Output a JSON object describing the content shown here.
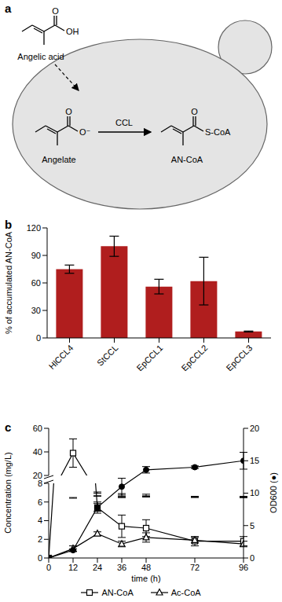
{
  "diagram": {
    "panel_label": "a",
    "enzyme": "CCL",
    "molecules": [
      {
        "label": "Angelic acid",
        "atoms": [
          "O",
          "OH"
        ]
      },
      {
        "label": "Angelate",
        "atoms": [
          "O",
          "O⁻"
        ]
      },
      {
        "label": "AN-CoA",
        "atoms": [
          "O",
          "S-CoA"
        ]
      }
    ]
  },
  "chart_data": [
    {
      "panel_label": "b",
      "type": "bar",
      "y_label": "% of accumulated AN-CoA",
      "categories": [
        "HlCCL4",
        "StCCL",
        "EpCCL1",
        "EpCCL2",
        "EpCCL3"
      ],
      "values": [
        75,
        100,
        56,
        62,
        7
      ],
      "errors": [
        4.5,
        11,
        8,
        26,
        0.5
      ],
      "color": "#b01e1e",
      "ylim": [
        0,
        120
      ],
      "yticks": [
        0,
        30,
        60,
        90,
        120
      ]
    },
    {
      "panel_label": "c",
      "type": "line",
      "x_label": "time (h)",
      "y_label": "Concentration (mg/L)",
      "y2_label": "OD600 (●)",
      "x": [
        0,
        12,
        24,
        36,
        48,
        72,
        96
      ],
      "xlim": [
        0,
        96
      ],
      "xticks": [
        0,
        12,
        24,
        36,
        48,
        72,
        96
      ],
      "ylim": [
        0,
        60
      ],
      "yticks": [
        0,
        2,
        4,
        6,
        8,
        20,
        40,
        60
      ],
      "y_break": [
        8,
        20
      ],
      "y2lim": [
        0,
        20
      ],
      "y2ticks": [
        0,
        5,
        10,
        15,
        20
      ],
      "legend": "bottom",
      "series": [
        {
          "name": "AN-CoA",
          "color": "#000000",
          "marker": "square",
          "values": [
            0,
            39,
            5.4,
            3.4,
            3.2,
            1.8,
            1.8
          ],
          "errors": [
            0,
            12,
            0.6,
            1.2,
            0.9,
            0.5,
            0.5
          ]
        },
        {
          "name": "Ac-CoA",
          "color": "#000000",
          "marker": "triangle",
          "values": [
            0,
            1.0,
            2.6,
            1.5,
            2.2,
            1.9,
            1.5
          ],
          "errors": [
            0,
            0.3,
            0.2,
            0.3,
            0.5,
            0.3,
            0.3
          ]
        },
        {
          "color": "#000000",
          "marker": "circle",
          "axis": "y2",
          "values": [
            0,
            1.2,
            7.8,
            11,
            13.6,
            14,
            15
          ],
          "errors": [
            0,
            0.2,
            0.6,
            1.3,
            0.5,
            0.2,
            1.3
          ]
        }
      ]
    }
  ]
}
